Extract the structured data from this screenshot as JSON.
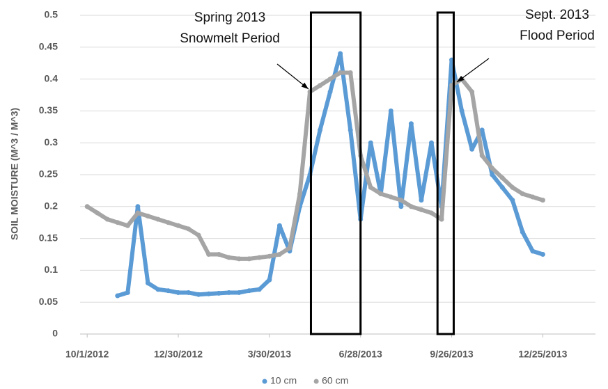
{
  "chart_data": {
    "type": "scatter",
    "y_label": "SOIL MOISTURE (M^3 / M^3)",
    "x": [
      "10/1/2012",
      "10/11/2012",
      "10/21/2012",
      "10/31/2012",
      "11/10/2012",
      "11/20/2012",
      "11/30/2012",
      "12/10/2012",
      "12/20/2012",
      "12/30/2012",
      "1/9/2013",
      "1/19/2013",
      "1/29/2013",
      "2/8/2013",
      "2/18/2013",
      "2/28/2013",
      "3/10/2013",
      "3/20/2013",
      "3/30/2013",
      "4/9/2013",
      "4/19/2013",
      "4/29/2013",
      "5/9/2013",
      "5/19/2013",
      "5/29/2013",
      "6/8/2013",
      "6/18/2013",
      "6/28/2013",
      "7/8/2013",
      "7/18/2013",
      "7/28/2013",
      "8/7/2013",
      "8/17/2013",
      "8/27/2013",
      "9/6/2013",
      "9/16/2013",
      "9/26/2013",
      "10/6/2013",
      "10/16/2013",
      "10/26/2013",
      "11/5/2013",
      "11/15/2013",
      "11/25/2013",
      "12/5/2013",
      "12/15/2013",
      "12/25/2013"
    ],
    "series": [
      {
        "name": "10 cm",
        "color": "#5b9bd5",
        "values": [
          null,
          null,
          null,
          0.06,
          0.065,
          0.2,
          0.08,
          0.07,
          0.068,
          0.065,
          0.065,
          0.062,
          0.063,
          0.064,
          0.065,
          0.065,
          0.068,
          0.07,
          0.085,
          0.17,
          0.13,
          0.2,
          0.25,
          0.32,
          0.38,
          0.44,
          0.32,
          0.18,
          0.3,
          0.22,
          0.35,
          0.2,
          0.33,
          0.21,
          0.3,
          0.2,
          0.43,
          0.35,
          0.29,
          0.32,
          0.25,
          0.23,
          0.21,
          0.16,
          0.13,
          0.125
        ]
      },
      {
        "name": "60 cm",
        "color": "#a5a5a5",
        "values": [
          0.2,
          0.19,
          0.18,
          0.175,
          0.17,
          0.19,
          0.185,
          0.18,
          0.175,
          0.17,
          0.165,
          0.155,
          0.125,
          0.125,
          0.12,
          0.118,
          0.118,
          0.12,
          0.122,
          0.125,
          0.135,
          0.22,
          0.38,
          0.39,
          0.4,
          0.41,
          0.41,
          0.28,
          0.23,
          0.22,
          0.215,
          0.21,
          0.2,
          0.195,
          0.19,
          0.18,
          0.39,
          0.4,
          0.38,
          0.28,
          0.26,
          0.245,
          0.23,
          0.22,
          0.215,
          0.21
        ]
      }
    ],
    "xlim": [
      "9/24/2012",
      "2/15/2014"
    ],
    "xticks": [
      "10/1/2012",
      "12/30/2012",
      "3/30/2013",
      "6/28/2013",
      "9/26/2013",
      "12/25/2013"
    ],
    "ylim": [
      0,
      0.5
    ],
    "yticks": [
      0,
      0.05,
      0.1,
      0.15,
      0.2,
      0.25,
      0.3,
      0.35,
      0.4,
      0.45,
      0.5
    ],
    "grid": true,
    "legend": "bottom",
    "annotations": [
      {
        "lines": [
          "Spring 2013",
          "Snowmelt Period"
        ],
        "box": [
          "5/10/2013",
          "6/28/2013"
        ]
      },
      {
        "lines": [
          "Sept. 2013",
          "Flood Period"
        ],
        "box": [
          "9/12/2013",
          "9/28/2013"
        ]
      }
    ]
  }
}
